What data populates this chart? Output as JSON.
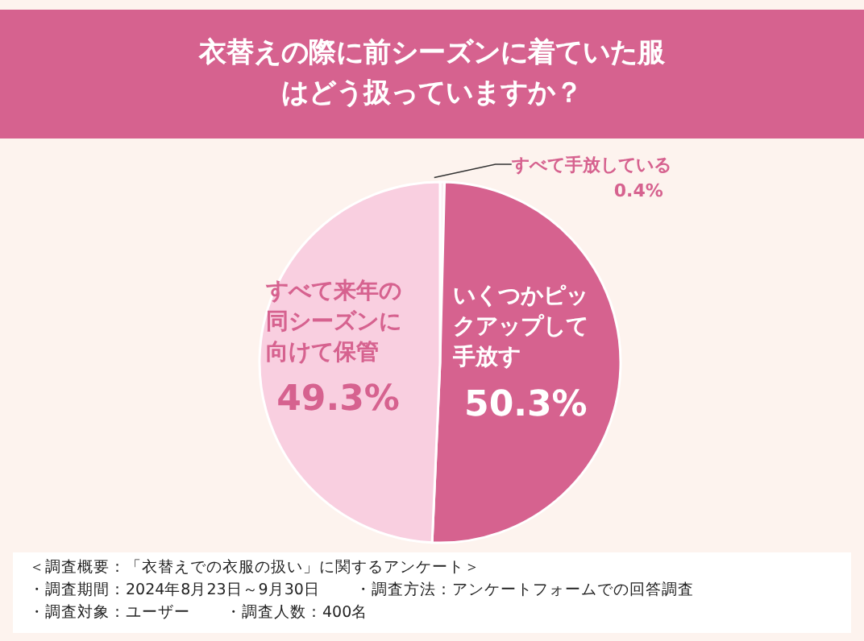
{
  "chart_data": {
    "type": "pie",
    "title": "衣替えの際に前シーズンに着ていた服はどう扱っていますか？",
    "categories": [
      "すべて手放している",
      "いくつかピックアップして手放す",
      "すべて来年の同シーズンに向けて保管"
    ],
    "values": [
      0.4,
      50.3,
      49.3
    ],
    "value_labels": [
      "0.4%",
      "50.3%",
      "49.3%"
    ],
    "colors": [
      "#fbeef3",
      "#d6628f",
      "#f9cfe0"
    ],
    "legend": false,
    "annotations": [
      "＜調査概要：「衣替えでの衣服の扱い」に関するアンケート＞",
      "・調査期間：2024年8月23日～9月30日",
      "・調査方法：アンケートフォームでの回答調査",
      "・調査対象：ユーザー",
      "・調査人数：400名"
    ]
  }
}
